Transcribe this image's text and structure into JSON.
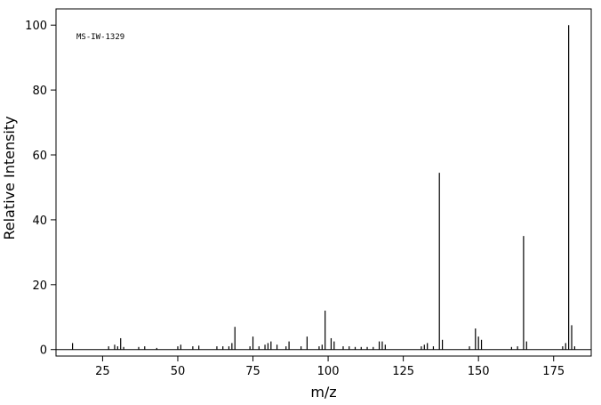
{
  "chart_data": {
    "type": "stem",
    "annotation": "MS-IW-1329",
    "x_label": "m/z",
    "y_label": "Relative Intensity",
    "color": "#000000",
    "x": [
      15,
      27,
      29,
      30,
      31,
      32,
      37,
      39,
      43,
      50,
      51,
      55,
      57,
      63,
      65,
      67,
      68,
      69,
      74,
      75,
      77,
      79,
      80,
      81,
      83,
      86,
      87,
      91,
      93,
      97,
      98,
      99,
      101,
      102,
      105,
      107,
      109,
      111,
      113,
      115,
      117,
      118,
      119,
      131,
      132,
      133,
      135,
      137,
      138,
      147,
      149,
      150,
      151,
      161,
      163,
      165,
      166,
      178,
      179,
      180,
      181,
      182
    ],
    "values": [
      2,
      1,
      1.5,
      1,
      3.5,
      0.8,
      0.8,
      1,
      0.5,
      1,
      1.5,
      1,
      1.2,
      1,
      1,
      1,
      2,
      7,
      1,
      4,
      1,
      1.5,
      2,
      2.5,
      1.5,
      1,
      2.5,
      1,
      4,
      1,
      1.5,
      12,
      3.5,
      2.5,
      1,
      1,
      0.8,
      0.8,
      0.8,
      0.8,
      2.5,
      2.5,
      1.5,
      1,
      1.5,
      2,
      1,
      54.5,
      3,
      1,
      6.5,
      4,
      3,
      0.8,
      1,
      35,
      2.5,
      1,
      2,
      100,
      7.5,
      1
    ],
    "xlim": [
      9.5,
      187.5
    ],
    "ylim": [
      -2,
      105
    ],
    "xticks": [
      25,
      50,
      75,
      100,
      125,
      150,
      175
    ],
    "yticks": [
      0,
      20,
      40,
      60,
      80,
      100
    ]
  }
}
